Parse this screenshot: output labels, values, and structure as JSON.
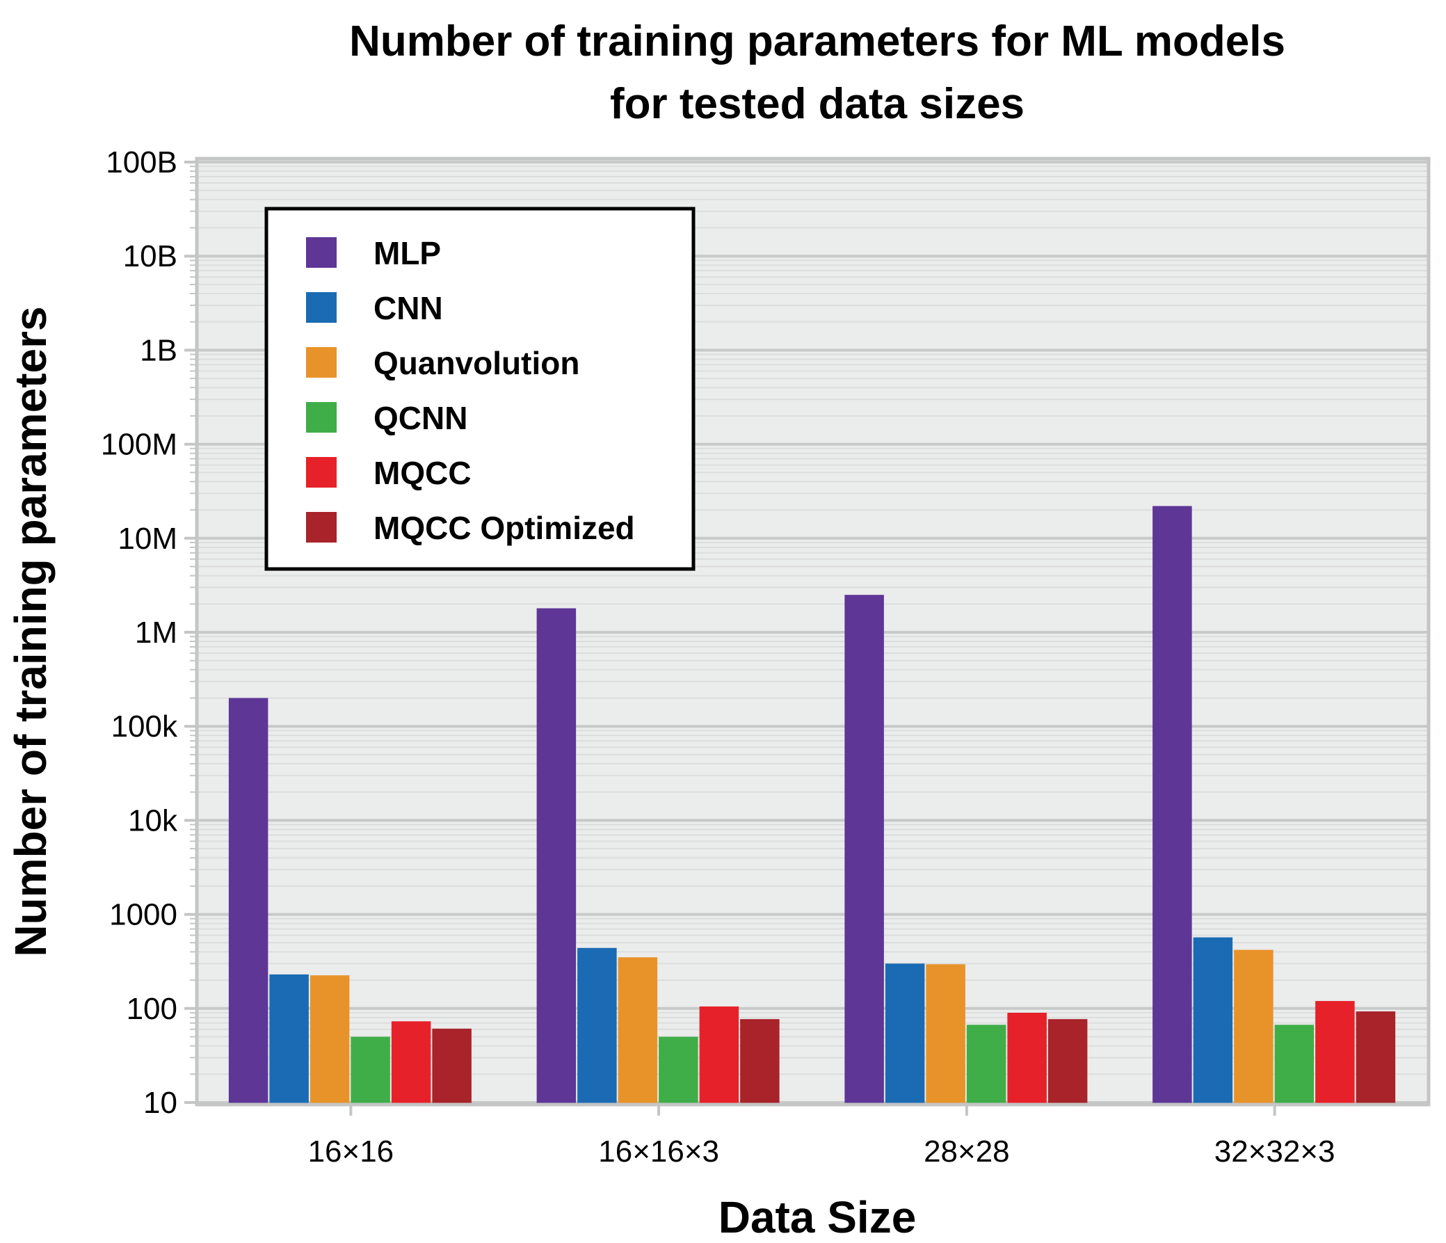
{
  "chart_data": {
    "type": "bar",
    "title_lines": [
      "Number of training parameters for ML models",
      "for tested data sizes"
    ],
    "xlabel": "Data Size",
    "ylabel": "Number of training parameters",
    "yscale": "log",
    "ylim": [
      10,
      100000000000
    ],
    "yticks": [
      {
        "value": 10,
        "label": "10"
      },
      {
        "value": 100,
        "label": "100"
      },
      {
        "value": 1000,
        "label": "1000"
      },
      {
        "value": 10000,
        "label": "10k"
      },
      {
        "value": 100000,
        "label": "100k"
      },
      {
        "value": 1000000,
        "label": "1M"
      },
      {
        "value": 10000000,
        "label": "10M"
      },
      {
        "value": 100000000,
        "label": "100M"
      },
      {
        "value": 1000000000,
        "label": "1B"
      },
      {
        "value": 10000000000,
        "label": "10B"
      },
      {
        "value": 100000000000,
        "label": "100B"
      }
    ],
    "grid": true,
    "legend_position": "top-left",
    "categories": [
      "16×16",
      "16×16×3",
      "28×28",
      "32×32×3"
    ],
    "series": [
      {
        "name": "MLP",
        "color": "#5e3696",
        "values": [
          200000,
          1800000,
          2500000,
          22000000
        ]
      },
      {
        "name": "CNN",
        "color": "#1a6bb3",
        "values": [
          230,
          440,
          300,
          570
        ]
      },
      {
        "name": "Quanvolution",
        "color": "#e8932a",
        "values": [
          225,
          350,
          295,
          420
        ]
      },
      {
        "name": "QCNN",
        "color": "#3fae49",
        "values": [
          50,
          50,
          67,
          67
        ]
      },
      {
        "name": "MQCC",
        "color": "#e62129",
        "values": [
          73,
          105,
          90,
          120
        ]
      },
      {
        "name": "MQCC Optimized",
        "color": "#a8232a",
        "values": [
          61,
          77,
          77,
          93
        ]
      }
    ]
  }
}
